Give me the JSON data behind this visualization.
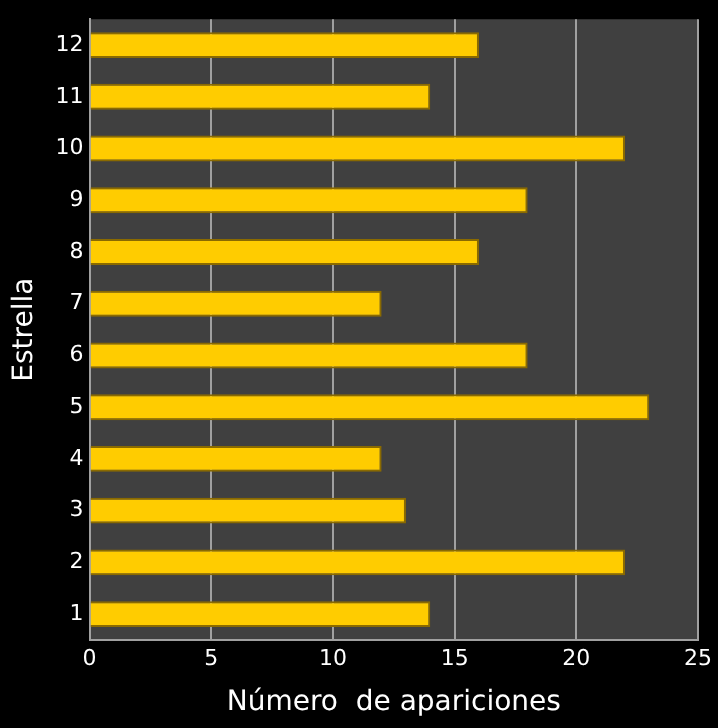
{
  "chart_data": {
    "type": "bar",
    "orientation": "horizontal",
    "xlabel": "Número  de apariciones",
    "ylabel": "Estrella",
    "categories": [
      "12",
      "11",
      "10",
      "9",
      "8",
      "7",
      "6",
      "5",
      "4",
      "3",
      "2",
      "1"
    ],
    "values": [
      16,
      14,
      22,
      18,
      16,
      12,
      18,
      23,
      12,
      13,
      22,
      14
    ],
    "color": "#ffcc00",
    "xlim": [
      0,
      25
    ],
    "xticks": [
      0,
      5,
      10,
      15,
      20,
      25
    ],
    "grid": "x"
  }
}
